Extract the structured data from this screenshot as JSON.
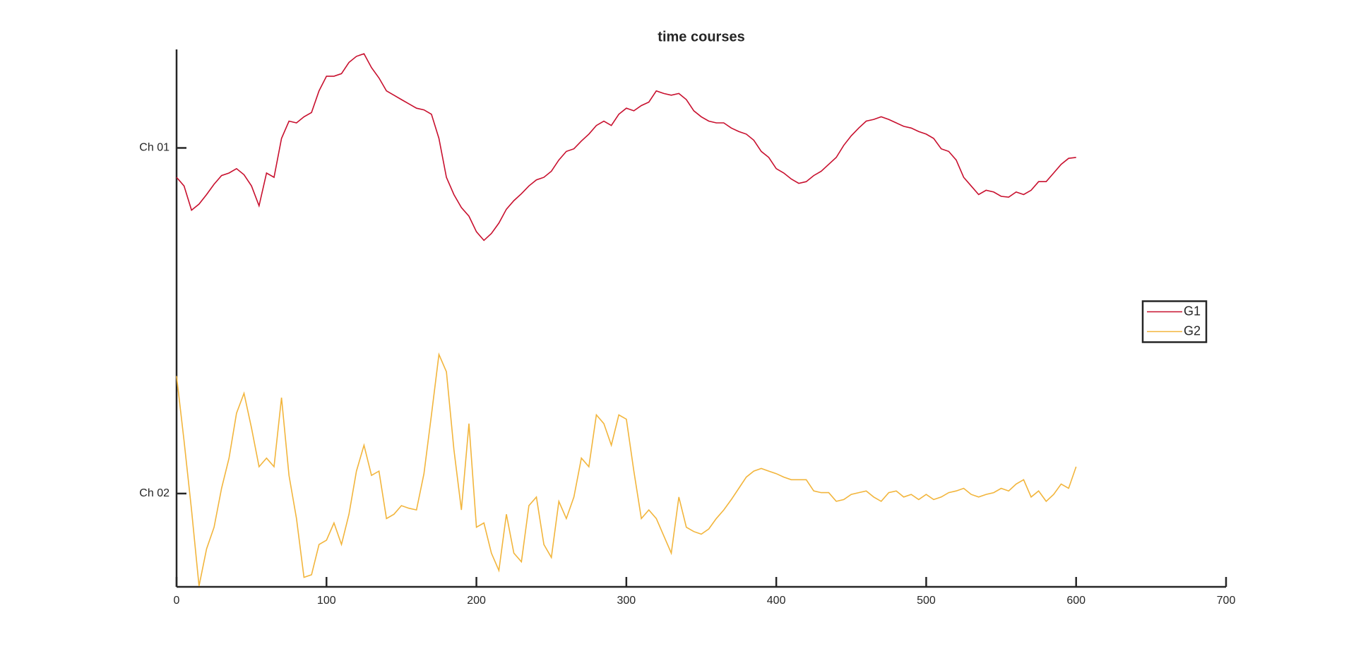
{
  "chart_data": {
    "type": "line",
    "title": "time courses",
    "x": [
      0,
      5,
      10,
      15,
      20,
      25,
      30,
      35,
      40,
      45,
      50,
      55,
      60,
      65,
      70,
      75,
      80,
      85,
      90,
      95,
      100,
      105,
      110,
      115,
      120,
      125,
      130,
      135,
      140,
      145,
      150,
      155,
      160,
      165,
      170,
      175,
      180,
      185,
      190,
      195,
      200,
      205,
      210,
      215,
      220,
      225,
      230,
      235,
      240,
      245,
      250,
      255,
      260,
      265,
      270,
      275,
      280,
      285,
      290,
      295,
      300,
      305,
      310,
      315,
      320,
      325,
      330,
      335,
      340,
      345,
      350,
      355,
      360,
      365,
      370,
      375,
      380,
      385,
      390,
      395,
      400,
      405,
      410,
      415,
      420,
      425,
      430,
      435,
      440,
      445,
      450,
      455,
      460,
      465,
      470,
      475,
      480,
      485,
      490,
      495,
      500,
      505,
      510,
      515,
      520,
      525,
      530,
      535,
      540,
      545,
      550,
      555,
      560,
      565,
      570,
      575,
      580,
      585,
      590,
      595,
      600
    ],
    "series": [
      {
        "name": "G1",
        "color": "#c8102e",
        "values": [
          366,
          356,
          328,
          335,
          346,
          358,
          368,
          371,
          376,
          369,
          356,
          333,
          371,
          366,
          411,
          431,
          429,
          436,
          441,
          466,
          483,
          483,
          486,
          499,
          506,
          509,
          493,
          481,
          466,
          461,
          456,
          451,
          446,
          444,
          439,
          411,
          366,
          346,
          331,
          321,
          303,
          293,
          301,
          313,
          329,
          339,
          347,
          356,
          363,
          366,
          373,
          386,
          396,
          399,
          408,
          416,
          426,
          431,
          426,
          439,
          446,
          443,
          449,
          453,
          466,
          463,
          461,
          463,
          456,
          443,
          436,
          431,
          429,
          429,
          423,
          419,
          416,
          409,
          396,
          389,
          376,
          371,
          364,
          359,
          361,
          368,
          373,
          381,
          389,
          403,
          414,
          423,
          431,
          433,
          436,
          433,
          429,
          425,
          423,
          419,
          416,
          411,
          399,
          396,
          386,
          366,
          356,
          346,
          351,
          349,
          344,
          343,
          349,
          346,
          351,
          361,
          361,
          371,
          381,
          388,
          389
        ]
      },
      {
        "name": "G2",
        "color": "#f2b53c",
        "values": [
          136,
          61,
          -19,
          -107,
          -64,
          -39,
          6,
          41,
          93,
          116,
          76,
          31,
          41,
          31,
          111,
          21,
          -29,
          -97,
          -94,
          -59,
          -54,
          -34,
          -59,
          -24,
          26,
          56,
          21,
          26,
          -29,
          -24,
          -14,
          -17,
          -19,
          23,
          91,
          161,
          141,
          51,
          -19,
          81,
          -39,
          -34,
          -69,
          -89,
          -24,
          -69,
          -79,
          -14,
          -4,
          -59,
          -74,
          -9,
          -29,
          -4,
          41,
          31,
          91,
          81,
          56,
          91,
          86,
          26,
          -29,
          -19,
          -29,
          -49,
          -69,
          -4,
          -39,
          -44,
          -47,
          -41,
          -29,
          -19,
          -7,
          6,
          19,
          26,
          29,
          26,
          23,
          19,
          16,
          16,
          16,
          3,
          1,
          1,
          -9,
          -7,
          -1,
          1,
          3,
          -4,
          -9,
          1,
          3,
          -4,
          -1,
          -7,
          -1,
          -7,
          -4,
          1,
          3,
          6,
          -1,
          -4,
          -1,
          1,
          6,
          3,
          11,
          16,
          -4,
          3,
          -9,
          -1,
          11,
          6,
          31
        ]
      }
    ],
    "xlim": [
      0,
      700
    ],
    "xticks": [
      0,
      100,
      200,
      300,
      400,
      500,
      600,
      700
    ],
    "ylim": [
      -108,
      514
    ],
    "yticks": [
      {
        "value": 0,
        "label": "Ch 02"
      },
      {
        "value": 400,
        "label": "Ch 01"
      }
    ],
    "grid": false,
    "legend": "east"
  }
}
